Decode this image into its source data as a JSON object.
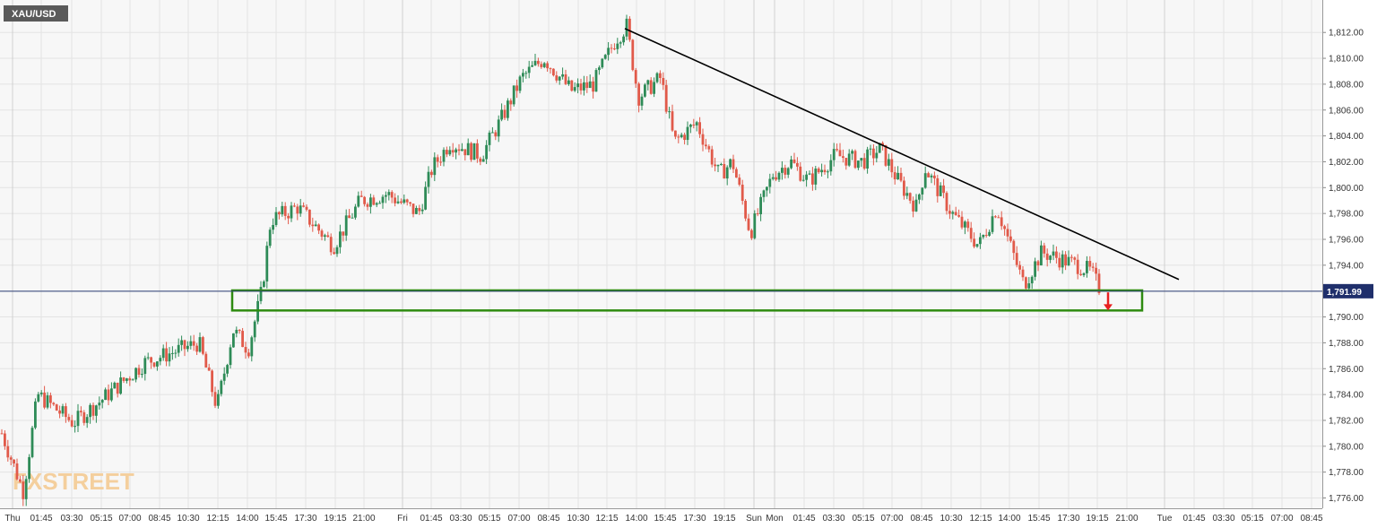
{
  "chart_data": {
    "type": "candlestick",
    "symbol": "XAU/USD",
    "last_price": 1791.99,
    "last_price_label": "1,791.99",
    "ylim": [
      1775.2,
      1814.0
    ],
    "y_ticks": [
      "1,776.00",
      "1,778.00",
      "1,780.00",
      "1,782.00",
      "1,784.00",
      "1,786.00",
      "1,788.00",
      "1,790.00",
      "1,792.00",
      "1,794.00",
      "1,796.00",
      "1,798.00",
      "1,800.00",
      "1,802.00",
      "1,804.00",
      "1,806.00",
      "1,808.00",
      "1,810.00",
      "1,812.00"
    ],
    "y_tick_values": [
      1776,
      1778,
      1780,
      1782,
      1784,
      1786,
      1788,
      1790,
      1792,
      1794,
      1796,
      1798,
      1800,
      1802,
      1804,
      1806,
      1808,
      1810,
      1812
    ],
    "x_ticks": [
      "Thu",
      "01:45",
      "03:30",
      "05:15",
      "07:00",
      "08:45",
      "10:30",
      "12:15",
      "14:00",
      "15:45",
      "17:30",
      "19:15",
      "21:00",
      "Fri",
      "01:45",
      "03:30",
      "05:15",
      "07:00",
      "08:45",
      "10:30",
      "12:15",
      "14:00",
      "15:45",
      "17:30",
      "19:15",
      "Sun",
      "Mon",
      "01:45",
      "03:30",
      "05:15",
      "07:00",
      "08:45",
      "10:30",
      "12:15",
      "14:00",
      "15:45",
      "17:30",
      "19:15",
      "21:00",
      "Tue",
      "01:45",
      "03:30",
      "05:15",
      "07:00",
      "08:45"
    ],
    "grid": true,
    "colors": {
      "up": "#2e8b57",
      "down": "#e15a4a",
      "trendline": "#000000",
      "support_zone": "#2e8b10",
      "arrow": "#e82020",
      "price_line": "#2c3e75",
      "price_label_bg": "#1f2f6b",
      "grid": "#e3e3e3",
      "background": "#f7f7f7"
    },
    "anchor_points": [
      {
        "t": 0,
        "price": 1781.0
      },
      {
        "t": 24,
        "price": 1776.5
      },
      {
        "t": 40,
        "price": 1784.0
      },
      {
        "t": 80,
        "price": 1781.8
      },
      {
        "t": 110,
        "price": 1783.5
      },
      {
        "t": 160,
        "price": 1786.5
      },
      {
        "t": 220,
        "price": 1788.0
      },
      {
        "t": 240,
        "price": 1783.0
      },
      {
        "t": 258,
        "price": 1789.0
      },
      {
        "t": 275,
        "price": 1787.5
      },
      {
        "t": 290,
        "price": 1792.0
      },
      {
        "t": 300,
        "price": 1797.5
      },
      {
        "t": 330,
        "price": 1798.5
      },
      {
        "t": 350,
        "price": 1797.0
      },
      {
        "t": 370,
        "price": 1795.5
      },
      {
        "t": 400,
        "price": 1799.0
      },
      {
        "t": 430,
        "price": 1799.5
      },
      {
        "t": 465,
        "price": 1798.0
      },
      {
        "t": 480,
        "price": 1801.5
      },
      {
        "t": 500,
        "price": 1803.5
      },
      {
        "t": 535,
        "price": 1802.5
      },
      {
        "t": 555,
        "price": 1805.0
      },
      {
        "t": 580,
        "price": 1808.5
      },
      {
        "t": 605,
        "price": 1810.0
      },
      {
        "t": 635,
        "price": 1807.5
      },
      {
        "t": 660,
        "price": 1808.0
      },
      {
        "t": 685,
        "price": 1811.5
      },
      {
        "t": 697,
        "price": 1812.5
      },
      {
        "t": 710,
        "price": 1807.0
      },
      {
        "t": 735,
        "price": 1808.5
      },
      {
        "t": 750,
        "price": 1803.5
      },
      {
        "t": 775,
        "price": 1805.0
      },
      {
        "t": 800,
        "price": 1801.0
      },
      {
        "t": 815,
        "price": 1802.0
      },
      {
        "t": 835,
        "price": 1796.5
      },
      {
        "t": 860,
        "price": 1801.0
      },
      {
        "t": 880,
        "price": 1802.0
      },
      {
        "t": 900,
        "price": 1800.5
      },
      {
        "t": 930,
        "price": 1802.5
      },
      {
        "t": 960,
        "price": 1802.0
      },
      {
        "t": 980,
        "price": 1803.0
      },
      {
        "t": 1000,
        "price": 1800.5
      },
      {
        "t": 1020,
        "price": 1798.5
      },
      {
        "t": 1030,
        "price": 1801.5
      },
      {
        "t": 1060,
        "price": 1798.0
      },
      {
        "t": 1090,
        "price": 1795.5
      },
      {
        "t": 1110,
        "price": 1798.5
      },
      {
        "t": 1140,
        "price": 1792.5
      },
      {
        "t": 1160,
        "price": 1795.0
      },
      {
        "t": 1180,
        "price": 1794.5
      },
      {
        "t": 1200,
        "price": 1794.0
      },
      {
        "t": 1215,
        "price": 1793.5
      },
      {
        "t": 1226,
        "price": 1792.0
      }
    ],
    "trendline": [
      {
        "t": 695,
        "price": 1812.3
      },
      {
        "t": 1313,
        "price": 1792.9
      }
    ],
    "support_zone": {
      "t_start": 257,
      "t_end": 1272,
      "price_top": 1792.05,
      "price_bottom": 1790.5
    },
    "arrow": {
      "t": 1234,
      "price_from": 1791.9,
      "price_to": 1790.5
    },
    "watermark": "FXSTREET"
  }
}
